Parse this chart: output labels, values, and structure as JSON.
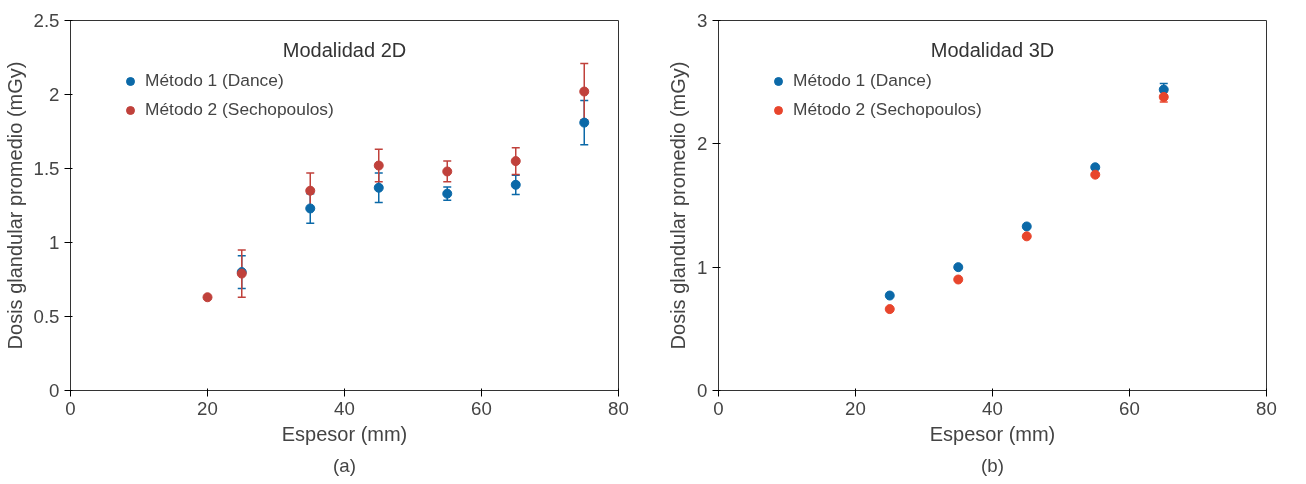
{
  "chart_data": [
    {
      "type": "scatter",
      "title": "Modalidad 2D",
      "xlabel": "Espesor (mm)",
      "ylabel": "Dosis glandular promedio (mGy)",
      "annotations": [
        "(a)"
      ],
      "xlim": [
        0,
        80
      ],
      "xticks": [
        0,
        20,
        40,
        60,
        80
      ],
      "ylim": [
        0,
        2.5
      ],
      "yticks": [
        0,
        0.5,
        1,
        1.5,
        2,
        2.5
      ],
      "grid": false,
      "legend": "top left",
      "marker": "circle",
      "series": [
        {
          "name": "Método 1 (Dance)",
          "color": "#0b69a8",
          "x": [
            25,
            35,
            45,
            55,
            65,
            75
          ],
          "values": [
            0.8,
            1.23,
            1.37,
            1.33,
            1.39,
            1.81
          ],
          "errors": [
            0.11,
            0.1,
            0.1,
            0.045,
            0.065,
            0.15
          ]
        },
        {
          "name": "Método 2 (Sechopoulos)",
          "color": "#c0413b",
          "x": [
            20,
            25,
            35,
            45,
            55,
            65,
            75
          ],
          "values": [
            0.63,
            0.79,
            1.35,
            1.52,
            1.48,
            1.55,
            2.02
          ],
          "errors": [
            null,
            0.16,
            0.12,
            0.11,
            0.07,
            0.09,
            0.19
          ]
        }
      ]
    },
    {
      "type": "scatter",
      "title": "Modalidad 3D",
      "xlabel": "Espesor (mm)",
      "ylabel": "Dosis glandular promedio (mGy)",
      "annotations": [
        "(b)"
      ],
      "xlim": [
        0,
        80
      ],
      "xticks": [
        0,
        20,
        40,
        60,
        80
      ],
      "ylim": [
        0,
        3
      ],
      "yticks": [
        0,
        1,
        2,
        3
      ],
      "grid": false,
      "legend": "top left",
      "marker": "circle",
      "series": [
        {
          "name": "Método 1 (Dance)",
          "color": "#0b69a8",
          "x": [
            25,
            35,
            45,
            55,
            65
          ],
          "values": [
            0.77,
            1.0,
            1.33,
            1.81,
            2.44
          ],
          "errors": [
            null,
            null,
            null,
            null,
            0.05
          ]
        },
        {
          "name": "Método 2 (Sechopoulos)",
          "color": "#e8452c",
          "x": [
            25,
            35,
            45,
            55,
            65
          ],
          "values": [
            0.66,
            0.9,
            1.25,
            1.75,
            2.38
          ],
          "errors": [
            null,
            null,
            null,
            null,
            0.04
          ]
        }
      ]
    }
  ]
}
